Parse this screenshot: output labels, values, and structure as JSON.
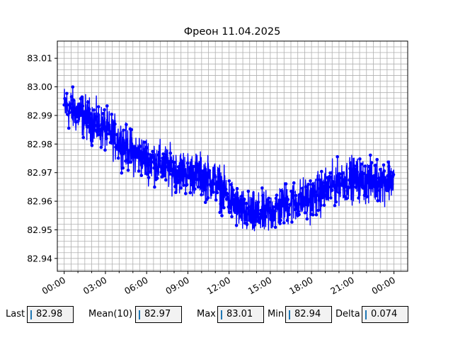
{
  "chart_data": {
    "type": "line",
    "title": "Фреон 11.04.2025",
    "xlabel": "",
    "ylabel": "",
    "x_ticks": [
      "00:00",
      "03:00",
      "06:00",
      "09:00",
      "12:00",
      "15:00",
      "18:00",
      "21:00",
      "00:00"
    ],
    "x_tick_hours": [
      0,
      3,
      6,
      9,
      12,
      15,
      18,
      21,
      24
    ],
    "x_range_hours": [
      -0.5,
      25
    ],
    "y_ticks": [
      "82.94",
      "82.95",
      "82.96",
      "82.97",
      "82.98",
      "82.99",
      "83.00",
      "83.01"
    ],
    "y_tick_values": [
      82.94,
      82.95,
      82.96,
      82.97,
      82.98,
      82.99,
      83.0,
      83.01
    ],
    "ylim": [
      82.9355,
      83.016
    ],
    "grid": true,
    "minor_grid": true,
    "series": [
      {
        "color": "#0000ff",
        "marker": "circle",
        "trend_hours": [
          0,
          1,
          2,
          3,
          4,
          5,
          6,
          7,
          8,
          9,
          10,
          11,
          12,
          13,
          14,
          15,
          16,
          17,
          18,
          19,
          20,
          21,
          22,
          23,
          24
        ],
        "trend_values": [
          82.993,
          82.991,
          82.988,
          82.985,
          82.981,
          82.977,
          82.975,
          82.973,
          82.971,
          82.97,
          82.969,
          82.967,
          82.961,
          82.956,
          82.955,
          82.956,
          82.959,
          82.96,
          82.961,
          82.964,
          82.967,
          82.968,
          82.967,
          82.967,
          82.968
        ],
        "noise_amplitude": 0.011,
        "sample_count": 1500,
        "max_value": 83.01,
        "min_value": 82.94
      }
    ]
  },
  "stats": {
    "last_label": "Last",
    "last_value": "82.98",
    "mean_label": "Mean(10)",
    "mean_value": "82.97",
    "max_label": "Max",
    "max_value": "83.01",
    "min_label": "Min",
    "min_value": "82.94",
    "delta_label": "Delta",
    "delta_value": "0.074"
  },
  "colors": {
    "line": "#0000ff",
    "grid": "#b0b0b0",
    "box_bg": "#f2f2f2",
    "box_accent": "#1f77b4"
  }
}
